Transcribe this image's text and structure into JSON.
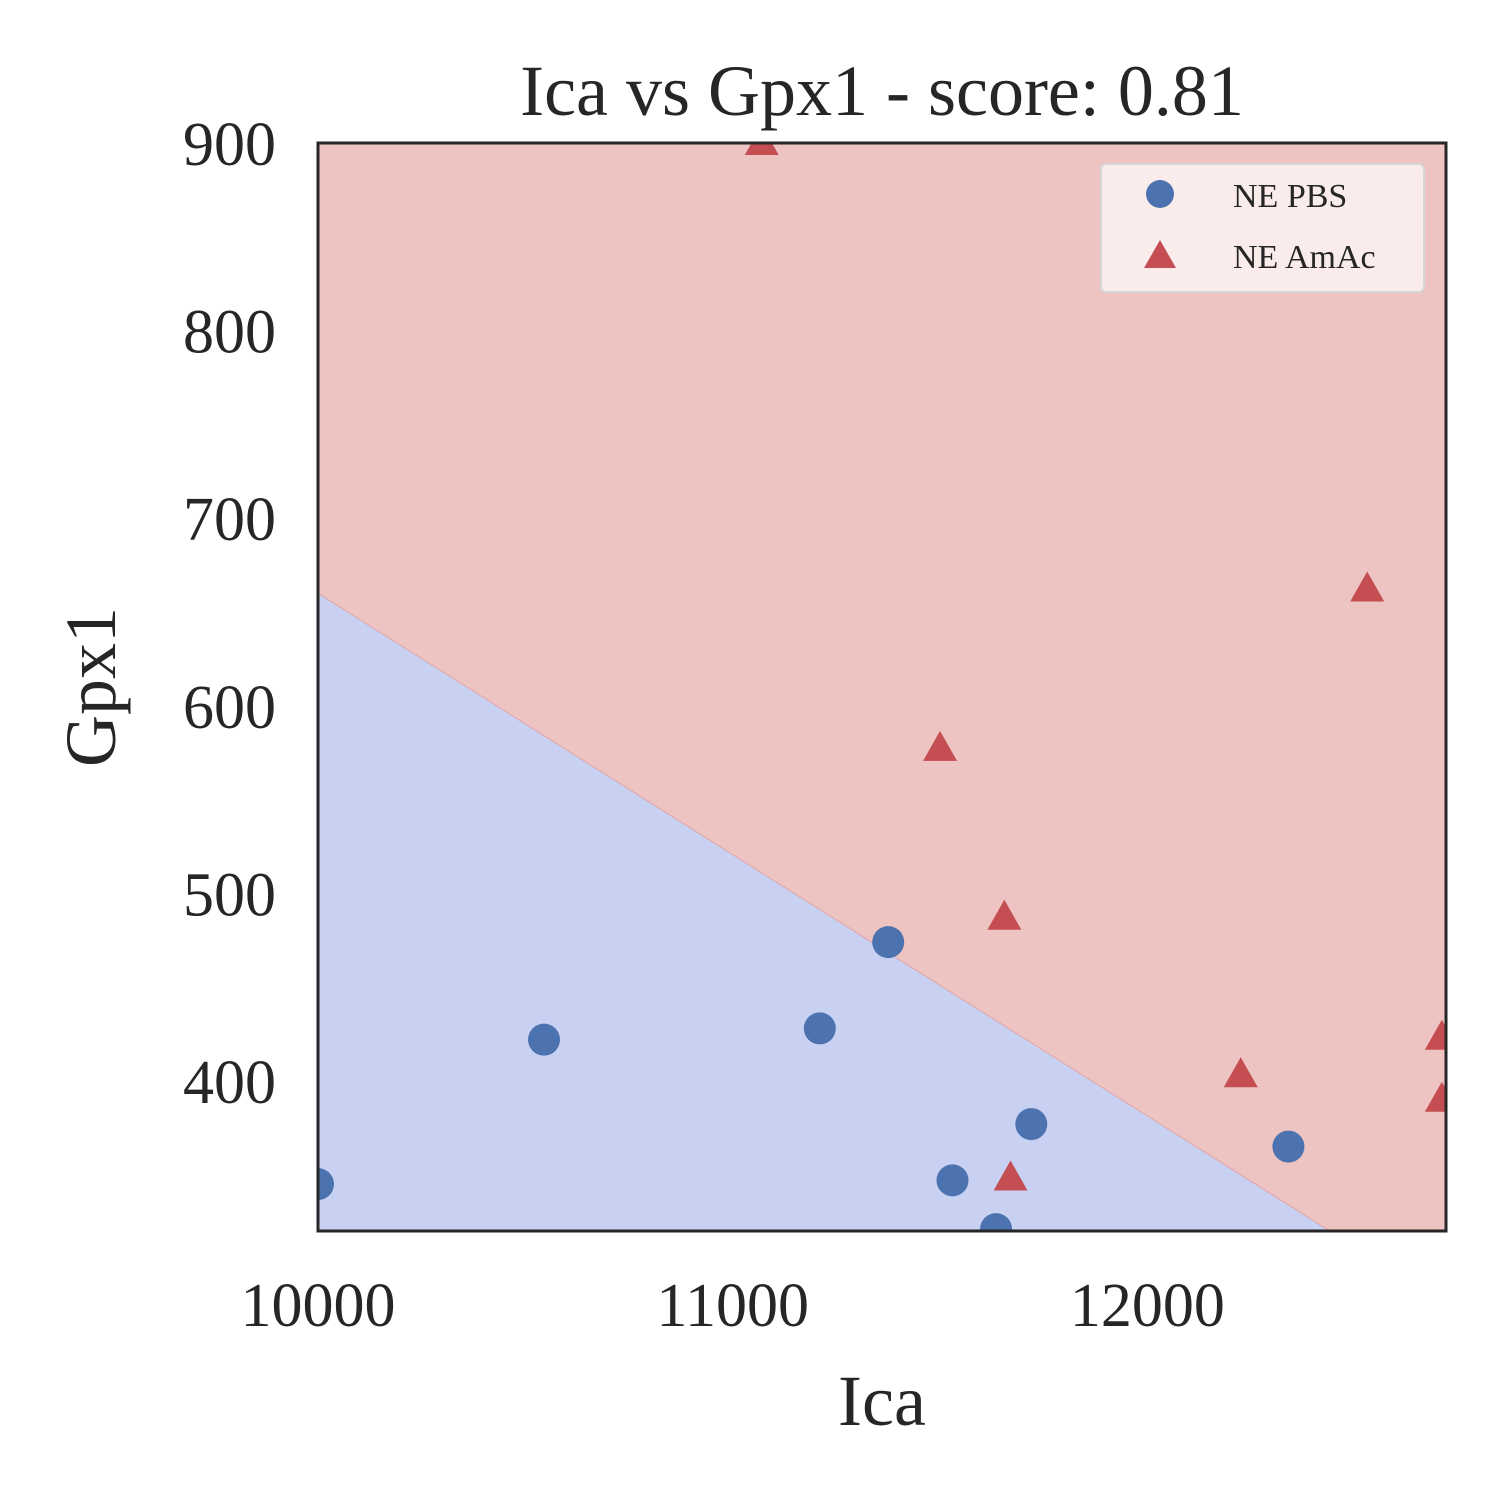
{
  "chart_data": {
    "type": "scatter",
    "title": "Ica vs Gpx1 - score: 0.81",
    "xlabel": "Ica",
    "ylabel": "Gpx1",
    "xlim": [
      10000,
      12720
    ],
    "ylim": [
      320,
      900
    ],
    "xticks": [
      "10000",
      "11000",
      "12000"
    ],
    "yticks": [
      "400",
      "500",
      "600",
      "700",
      "800",
      "900"
    ],
    "grid": false,
    "legend_position": "top-right",
    "decision_boundary": {
      "points": [
        [
          10000,
          660
        ],
        [
          12440,
          320
        ]
      ],
      "region_below": "NE PBS",
      "region_above": "NE AmAc",
      "color_below": "#c8d1f1",
      "color_above": "#eec4c3"
    },
    "series": [
      {
        "name": "NE PBS",
        "marker": "circle",
        "color": "#4c72b0",
        "points": [
          [
            10000,
            345
          ],
          [
            10545,
            422
          ],
          [
            11210,
            428
          ],
          [
            11375,
            474
          ],
          [
            11530,
            347
          ],
          [
            11635,
            321
          ],
          [
            11720,
            377
          ],
          [
            12340,
            365
          ]
        ]
      },
      {
        "name": "NE AmAc",
        "marker": "triangle",
        "color": "#c44e52",
        "points": [
          [
            11070,
            900
          ],
          [
            11500,
            577
          ],
          [
            11655,
            487
          ],
          [
            11670,
            348
          ],
          [
            12225,
            403
          ],
          [
            12530,
            662
          ],
          [
            12710,
            423
          ],
          [
            12710,
            390
          ]
        ]
      }
    ]
  }
}
